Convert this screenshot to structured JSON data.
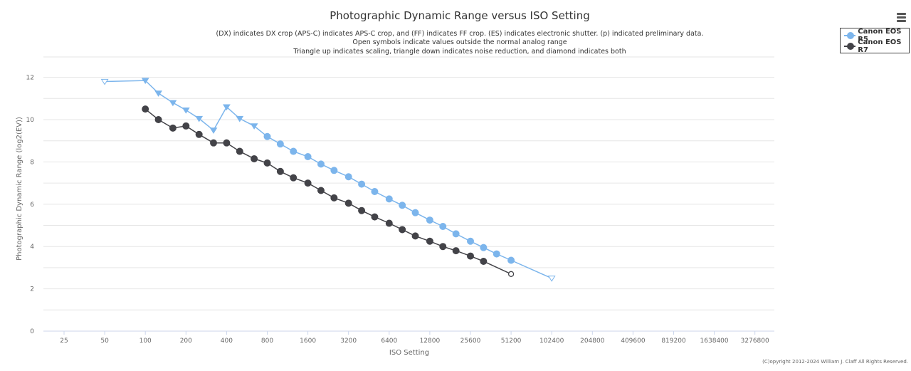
{
  "title": "Photographic Dynamic Range versus ISO Setting",
  "subtitle_lines": [
    "(DX) indicates DX crop (APS-C) indicates APS-C crop, and (FF) indicates FF crop. (ES) indicates electronic shutter. (p) indicated preliminary data.",
    "Open symbols indicate values outside the normal analog range",
    "Triangle up indicates scaling, triangle down indicates noise reduction, and diamond indicates both"
  ],
  "menu_icon": "hamburger-menu-icon",
  "copyright": "(C)opyright 2012-2024 William J. Claff All Rights Reserved.",
  "colors": {
    "r5": "#7cb5ec",
    "r7": "#434348",
    "grid": "#e6e6e6",
    "axis": "#ccd6eb"
  },
  "legend": [
    {
      "name": "Canon EOS R5",
      "color": "#7cb5ec"
    },
    {
      "name": "Canon EOS R7",
      "color": "#434348"
    }
  ],
  "chart_data": {
    "type": "line",
    "title": "Photographic Dynamic Range versus ISO Setting",
    "xlabel": "ISO Setting",
    "ylabel": "Photographic Dynamic Range (log2(EV))",
    "x_scale": "log2",
    "x_ticks": [
      "25",
      "50",
      "100",
      "200",
      "400",
      "800",
      "1600",
      "3200",
      "6400",
      "12800",
      "25600",
      "51200",
      "102400",
      "204800",
      "409600",
      "819200",
      "1638400",
      "3276800"
    ],
    "y_ticks": [
      "0",
      "2",
      "4",
      "6",
      "8",
      "10",
      "12"
    ],
    "xlim": [
      25,
      3276800
    ],
    "ylim": [
      0,
      12
    ],
    "grid": true,
    "legend_position": "top-right",
    "series": [
      {
        "name": "Canon EOS R5",
        "points": [
          {
            "x": 50,
            "y": 11.8,
            "marker": "triangle-down",
            "open": true
          },
          {
            "x": 100,
            "y": 11.85,
            "marker": "triangle-down",
            "open": false
          },
          {
            "x": 125,
            "y": 11.25,
            "marker": "triangle-down",
            "open": false
          },
          {
            "x": 160,
            "y": 10.8,
            "marker": "triangle-down",
            "open": false
          },
          {
            "x": 200,
            "y": 10.45,
            "marker": "triangle-down",
            "open": false
          },
          {
            "x": 250,
            "y": 10.05,
            "marker": "triangle-down",
            "open": false
          },
          {
            "x": 320,
            "y": 9.5,
            "marker": "triangle-down",
            "open": false
          },
          {
            "x": 400,
            "y": 10.6,
            "marker": "triangle-down",
            "open": false
          },
          {
            "x": 500,
            "y": 10.05,
            "marker": "triangle-down",
            "open": false
          },
          {
            "x": 640,
            "y": 9.7,
            "marker": "triangle-down",
            "open": false
          },
          {
            "x": 800,
            "y": 9.2,
            "marker": "circle",
            "open": false
          },
          {
            "x": 1000,
            "y": 8.85,
            "marker": "circle",
            "open": false
          },
          {
            "x": 1250,
            "y": 8.5,
            "marker": "circle",
            "open": false
          },
          {
            "x": 1600,
            "y": 8.25,
            "marker": "circle",
            "open": false
          },
          {
            "x": 2000,
            "y": 7.9,
            "marker": "circle",
            "open": false
          },
          {
            "x": 2500,
            "y": 7.6,
            "marker": "circle",
            "open": false
          },
          {
            "x": 3200,
            "y": 7.3,
            "marker": "circle",
            "open": false
          },
          {
            "x": 4000,
            "y": 6.95,
            "marker": "circle",
            "open": false
          },
          {
            "x": 5000,
            "y": 6.6,
            "marker": "circle",
            "open": false
          },
          {
            "x": 6400,
            "y": 6.25,
            "marker": "circle",
            "open": false
          },
          {
            "x": 8000,
            "y": 5.95,
            "marker": "circle",
            "open": false
          },
          {
            "x": 10000,
            "y": 5.6,
            "marker": "circle",
            "open": false
          },
          {
            "x": 12800,
            "y": 5.25,
            "marker": "circle",
            "open": false
          },
          {
            "x": 16000,
            "y": 4.95,
            "marker": "circle",
            "open": false
          },
          {
            "x": 20000,
            "y": 4.6,
            "marker": "circle",
            "open": false
          },
          {
            "x": 25600,
            "y": 4.25,
            "marker": "circle",
            "open": false
          },
          {
            "x": 32000,
            "y": 3.95,
            "marker": "circle",
            "open": false
          },
          {
            "x": 40000,
            "y": 3.65,
            "marker": "circle",
            "open": false
          },
          {
            "x": 51200,
            "y": 3.35,
            "marker": "circle",
            "open": false
          },
          {
            "x": 102400,
            "y": 2.5,
            "marker": "triangle-down",
            "open": true
          }
        ]
      },
      {
        "name": "Canon EOS R7",
        "points": [
          {
            "x": 100,
            "y": 10.5,
            "marker": "circle",
            "open": false
          },
          {
            "x": 125,
            "y": 10.0,
            "marker": "circle",
            "open": false
          },
          {
            "x": 160,
            "y": 9.6,
            "marker": "circle",
            "open": false
          },
          {
            "x": 200,
            "y": 9.7,
            "marker": "circle",
            "open": false
          },
          {
            "x": 250,
            "y": 9.3,
            "marker": "circle",
            "open": false
          },
          {
            "x": 320,
            "y": 8.9,
            "marker": "circle",
            "open": false
          },
          {
            "x": 400,
            "y": 8.9,
            "marker": "circle",
            "open": false
          },
          {
            "x": 500,
            "y": 8.5,
            "marker": "circle",
            "open": false
          },
          {
            "x": 640,
            "y": 8.15,
            "marker": "circle",
            "open": false
          },
          {
            "x": 800,
            "y": 7.95,
            "marker": "circle",
            "open": false
          },
          {
            "x": 1000,
            "y": 7.55,
            "marker": "circle",
            "open": false
          },
          {
            "x": 1250,
            "y": 7.25,
            "marker": "circle",
            "open": false
          },
          {
            "x": 1600,
            "y": 7.0,
            "marker": "circle",
            "open": false
          },
          {
            "x": 2000,
            "y": 6.65,
            "marker": "circle",
            "open": false
          },
          {
            "x": 2500,
            "y": 6.3,
            "marker": "circle",
            "open": false
          },
          {
            "x": 3200,
            "y": 6.05,
            "marker": "circle",
            "open": false
          },
          {
            "x": 4000,
            "y": 5.7,
            "marker": "circle",
            "open": false
          },
          {
            "x": 5000,
            "y": 5.4,
            "marker": "circle",
            "open": false
          },
          {
            "x": 6400,
            "y": 5.1,
            "marker": "circle",
            "open": false
          },
          {
            "x": 8000,
            "y": 4.8,
            "marker": "circle",
            "open": false
          },
          {
            "x": 10000,
            "y": 4.5,
            "marker": "circle",
            "open": false
          },
          {
            "x": 12800,
            "y": 4.25,
            "marker": "circle",
            "open": false
          },
          {
            "x": 16000,
            "y": 4.0,
            "marker": "circle",
            "open": false
          },
          {
            "x": 20000,
            "y": 3.8,
            "marker": "circle",
            "open": false
          },
          {
            "x": 25600,
            "y": 3.55,
            "marker": "circle",
            "open": false
          },
          {
            "x": 32000,
            "y": 3.3,
            "marker": "circle",
            "open": false
          },
          {
            "x": 51200,
            "y": 2.7,
            "marker": "circle",
            "open": true
          }
        ]
      }
    ]
  }
}
